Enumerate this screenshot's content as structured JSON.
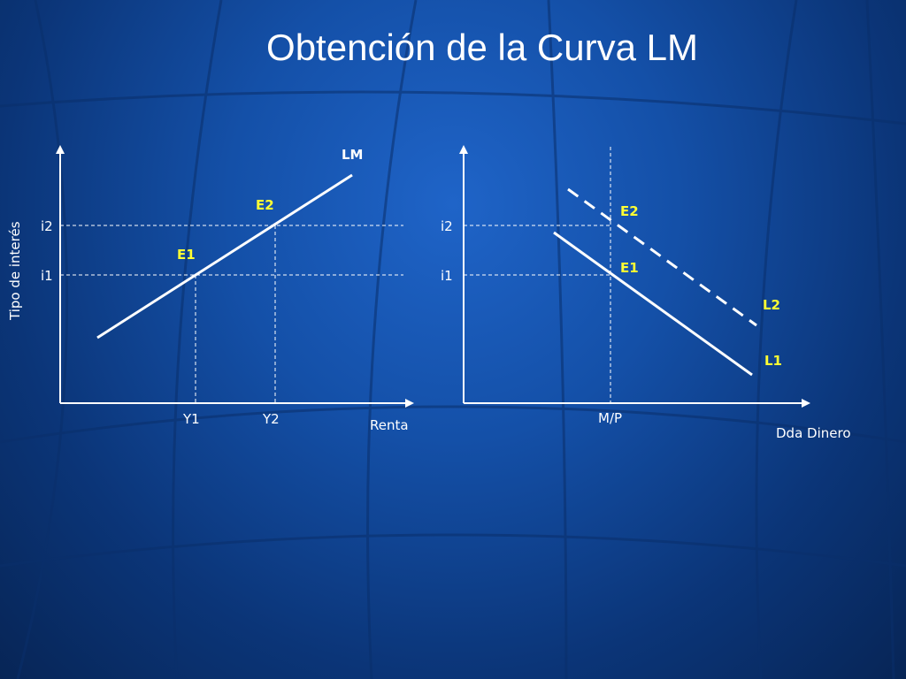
{
  "slide": {
    "title": "Obtención de la Curva LM"
  },
  "left_panel": {
    "y_axis_label": "Tipo de interés",
    "x_axis_label": "Renta",
    "curve_label": "LM",
    "interest_ticks": [
      "i2",
      "i1"
    ],
    "income_ticks": [
      "Y1",
      "Y2"
    ],
    "points": [
      "E1",
      "E2"
    ]
  },
  "right_panel": {
    "x_axis_label": "Dda Dinero",
    "interest_ticks": [
      "i2",
      "i1"
    ],
    "supply_tick": "M/P",
    "points": [
      "E2",
      "E1"
    ],
    "curves": [
      "L2",
      "L1"
    ]
  },
  "colors": {
    "lines": "#ffffff",
    "point_labels": "#ffff33",
    "background": "#1450a8"
  }
}
